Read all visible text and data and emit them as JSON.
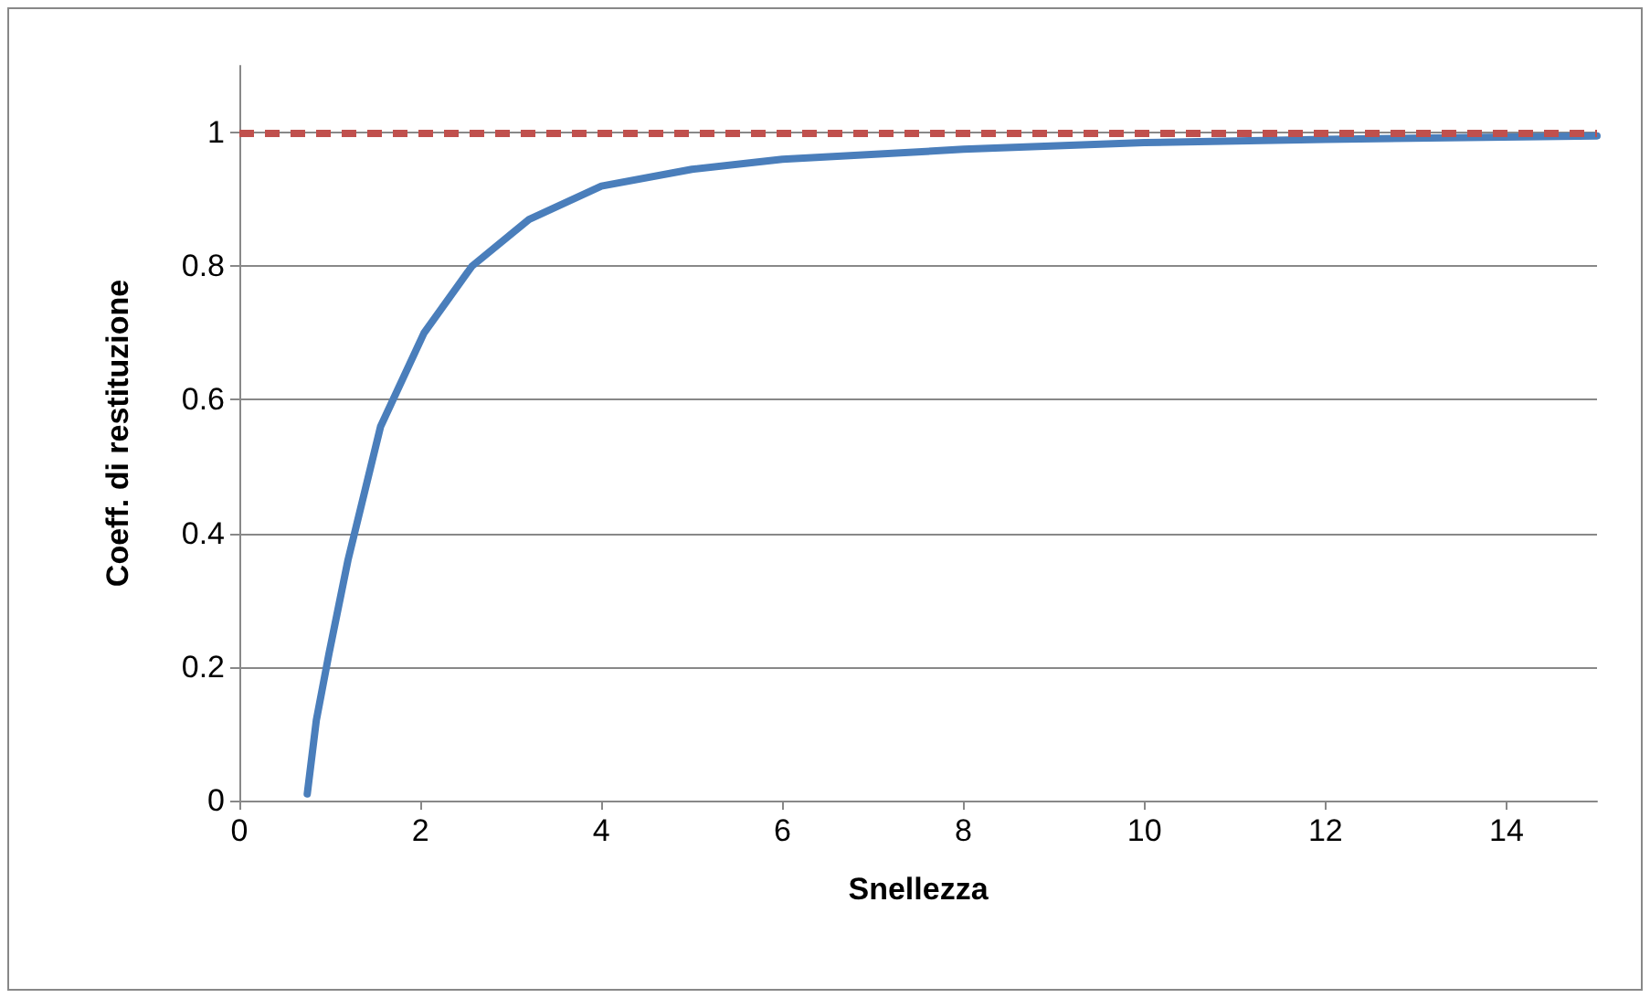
{
  "chart_data": {
    "type": "line",
    "xlabel": "Snellezza",
    "ylabel": "Coeff. di restituzione",
    "xlim": [
      0,
      15
    ],
    "xticks": [
      0,
      2,
      4,
      6,
      8,
      10,
      12,
      14
    ],
    "ylim": [
      0,
      1.1
    ],
    "yticks": [
      0,
      0.2,
      0.4,
      0.6,
      0.8,
      1
    ],
    "grid": "y",
    "marker": "none",
    "line_style": "solid",
    "series": [
      {
        "color": "#4a7ebb",
        "x": [
          0.75,
          0.85,
          0.99,
          1.2,
          1.56,
          2.04,
          2.57,
          3.2,
          4.0,
          5.0,
          6.0,
          8.0,
          10.0,
          12.0,
          15.0
        ],
        "values": [
          0.01,
          0.12,
          0.22,
          0.36,
          0.56,
          0.7,
          0.8,
          0.87,
          0.92,
          0.945,
          0.96,
          0.975,
          0.985,
          0.99,
          0.995
        ]
      }
    ],
    "ref_lines": [
      {
        "axis": "y",
        "value": 1,
        "label": null,
        "color": "#c0504d",
        "line_style": "dashed"
      }
    ]
  }
}
